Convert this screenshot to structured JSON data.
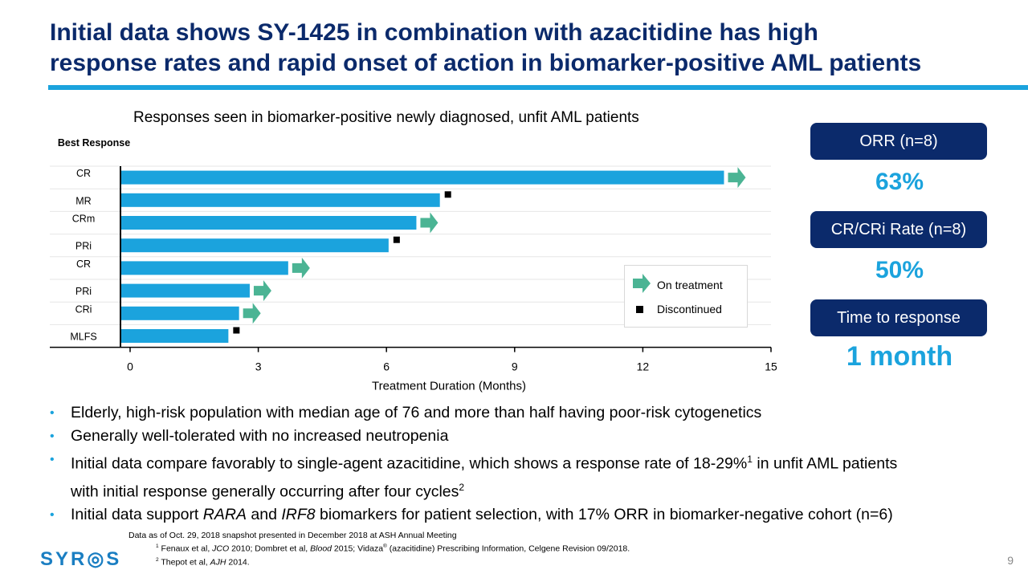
{
  "slide": {
    "title_line1": "Initial data shows SY-1425 in combination with azacitidine has high",
    "title_line2": "response rates and rapid onset of action in biomarker-positive AML patients",
    "accent_color": "#1ba3dd",
    "title_color": "#0b2a6b",
    "page_number": "9",
    "logo_text": "SYR◎S"
  },
  "chart_data": {
    "type": "bar",
    "orientation": "horizontal",
    "title": "Responses seen in biomarker-positive newly diagnosed, unfit AML patients",
    "row_header": "Best Response",
    "xlabel": "Treatment Duration (Months)",
    "xlim": [
      0,
      15
    ],
    "xticks": [
      "0",
      "3",
      "6",
      "9",
      "12",
      "15"
    ],
    "bar_color": "#1ba3dd",
    "arrow_color": "#4bb494",
    "categories": [
      "CR",
      "MR",
      "CRm",
      "PRi",
      "CR",
      "PRi",
      "CRi",
      "MLFS"
    ],
    "values": [
      13.9,
      7.25,
      6.7,
      6.05,
      3.7,
      2.8,
      2.55,
      2.3
    ],
    "status": [
      "On treatment",
      "Discontinued",
      "On treatment",
      "Discontinued",
      "On treatment",
      "On treatment",
      "On treatment",
      "Discontinued"
    ],
    "legend": [
      {
        "label": "On treatment",
        "marker": "arrow"
      },
      {
        "label": "Discontinued",
        "marker": "square"
      }
    ],
    "legend_position": "bottom-right"
  },
  "kpis": [
    {
      "label": "ORR (n=8)",
      "value": "63%"
    },
    {
      "label": "CR/CRi Rate (n=8)",
      "value": "50%"
    },
    {
      "label": "Time to response",
      "value": "1 month"
    }
  ],
  "bullets": {
    "b1": "Elderly, high-risk population with median age of 76 and more than half having poor-risk cytogenetics",
    "b2": "Generally well-tolerated with no increased neutropenia",
    "b3_part1": "Initial data compare favorably to single-agent azacitidine, which shows a response rate of 18-29%",
    "b3_sup1": "1",
    "b3_part2": " in unfit AML patients",
    "b3_part3": "with initial response generally occurring after four cycles",
    "b3_sup2": "2",
    "b4_pre": "Initial data support ",
    "b4_rara": "RARA",
    "b4_and": " and ",
    "b4_irf8": "IRF8",
    "b4_post": " biomarkers for patient selection, with 17% ORR in biomarker-negative cohort (n=6)"
  },
  "footnotes": {
    "line1": "Data as of Oct. 29, 2018 snapshot presented in December 2018 at ASH Annual Meeting",
    "fn1_sup": "1",
    "fn1_a": " Fenaux et al, ",
    "fn1_jco": "JCO",
    "fn1_b": " 2010; Dombret et al, ",
    "fn1_blood": "Blood",
    "fn1_c": " 2015; Vidaza",
    "fn1_reg": "®",
    "fn1_d": " (azacitidine) Prescribing Information, Celgene Revision 09/2018.",
    "fn2_sup": "2",
    "fn2_a": " Thepot et al, ",
    "fn2_ajh": "AJH",
    "fn2_b": " 2014."
  }
}
